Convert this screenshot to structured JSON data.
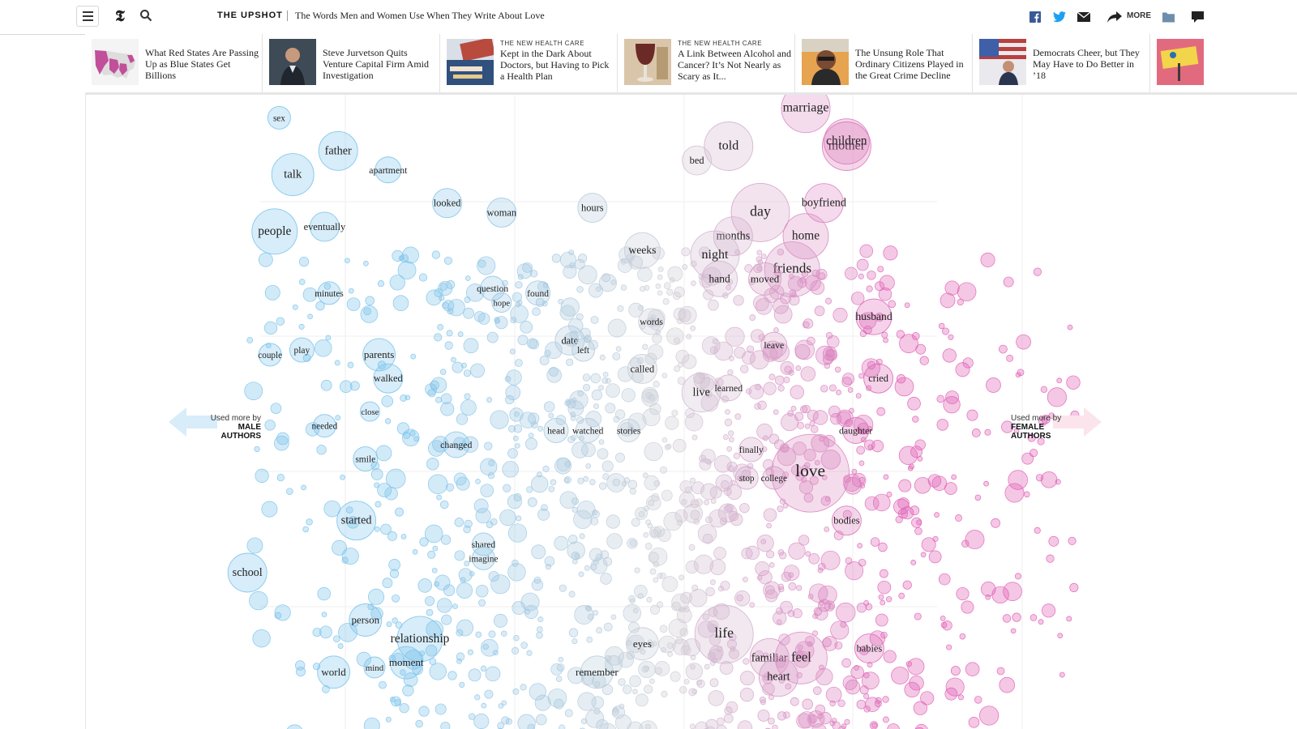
{
  "header": {
    "section": "THE UPSHOT",
    "headline": "The Words Men and Women Use When They Write About Love",
    "more_label": "MORE",
    "logo_letter": "𝕿"
  },
  "ribbon": [
    {
      "kicker": "",
      "title": "What Red States Are Passing Up as Blue States Get Billions",
      "thumb_color": "#c24f9a"
    },
    {
      "kicker": "",
      "title": "Steve Jurvetson Quits Venture Capital Firm Amid Investigation",
      "thumb_color": "#5a6a7a"
    },
    {
      "kicker": "THE NEW HEALTH CARE",
      "title": "Kept in the Dark About Doctors, but Having to Pick a Health Plan",
      "thumb_color": "#b84b3e"
    },
    {
      "kicker": "THE NEW HEALTH CARE",
      "title": "A Link Between Alcohol and Cancer? It’s Not Nearly as Scary as It...",
      "thumb_color": "#6b2a26"
    },
    {
      "kicker": "",
      "title": "The Unsung Role That Ordinary Citizens Played in the Great Crime Decline",
      "thumb_color": "#c9874a"
    },
    {
      "kicker": "",
      "title": "Democrats Cheer, but They May Have to Do Better in ’18",
      "thumb_color": "#3f5fa8"
    },
    {
      "kicker": "",
      "title": "",
      "thumb_color": "#e26a7e"
    }
  ],
  "chart_data": {
    "type": "scatter",
    "left_label": {
      "line1": "Used more by",
      "line2": "MALE",
      "line3": "AUTHORS"
    },
    "right_label": {
      "line1": "Used more by",
      "line2": "FEMALE",
      "line3": "AUTHORS"
    },
    "colors": {
      "male": "#7cc3ea",
      "female": "#e05fb4",
      "neutral": "#cfcfd6"
    },
    "labeled_words": [
      {
        "word": "sex",
        "x": -0.86,
        "y": 0.96,
        "size": 14,
        "side": "m"
      },
      {
        "word": "father",
        "x": -0.73,
        "y": 0.89,
        "size": 24,
        "side": "m"
      },
      {
        "word": "talk",
        "x": -0.83,
        "y": 0.84,
        "size": 26,
        "side": "m"
      },
      {
        "word": "apartment",
        "x": -0.62,
        "y": 0.85,
        "size": 16,
        "side": "m"
      },
      {
        "word": "looked",
        "x": -0.49,
        "y": 0.78,
        "size": 18,
        "side": "m"
      },
      {
        "word": "woman",
        "x": -0.37,
        "y": 0.76,
        "size": 18,
        "side": "m"
      },
      {
        "word": "eventually",
        "x": -0.76,
        "y": 0.73,
        "size": 18,
        "side": "m"
      },
      {
        "word": "people",
        "x": -0.87,
        "y": 0.72,
        "size": 28,
        "side": "m"
      },
      {
        "word": "minutes",
        "x": -0.75,
        "y": 0.59,
        "size": 14,
        "side": "m"
      },
      {
        "word": "question",
        "x": -0.39,
        "y": 0.6,
        "size": 15,
        "side": "m"
      },
      {
        "word": "hope",
        "x": -0.37,
        "y": 0.57,
        "size": 12,
        "side": "m"
      },
      {
        "word": "found",
        "x": -0.29,
        "y": 0.59,
        "size": 15,
        "side": "m"
      },
      {
        "word": "play",
        "x": -0.81,
        "y": 0.47,
        "size": 15,
        "side": "m"
      },
      {
        "word": "couple",
        "x": -0.88,
        "y": 0.46,
        "size": 14,
        "side": "m"
      },
      {
        "word": "parents",
        "x": -0.64,
        "y": 0.46,
        "size": 20,
        "side": "m"
      },
      {
        "word": "walked",
        "x": -0.62,
        "y": 0.41,
        "size": 18,
        "side": "m"
      },
      {
        "word": "close",
        "x": -0.66,
        "y": 0.34,
        "size": 12,
        "side": "m"
      },
      {
        "word": "needed",
        "x": -0.76,
        "y": 0.31,
        "size": 14,
        "side": "m"
      },
      {
        "word": "changed",
        "x": -0.47,
        "y": 0.27,
        "size": 16,
        "side": "m"
      },
      {
        "word": "smile",
        "x": -0.67,
        "y": 0.24,
        "size": 15,
        "side": "m"
      },
      {
        "word": "started",
        "x": -0.69,
        "y": 0.11,
        "size": 24,
        "side": "m"
      },
      {
        "word": "shared",
        "x": -0.41,
        "y": 0.06,
        "size": 14,
        "side": "m"
      },
      {
        "word": "imagine",
        "x": -0.41,
        "y": 0.03,
        "size": 14,
        "side": "m"
      },
      {
        "word": "school",
        "x": -0.93,
        "y": 0.0,
        "size": 24,
        "side": "m"
      },
      {
        "word": "person",
        "x": -0.67,
        "y": -0.1,
        "size": 20,
        "side": "m"
      },
      {
        "word": "relationship",
        "x": -0.55,
        "y": -0.14,
        "size": 28,
        "side": "m"
      },
      {
        "word": "moment",
        "x": -0.58,
        "y": -0.19,
        "size": 20,
        "side": "m"
      },
      {
        "word": "world",
        "x": -0.74,
        "y": -0.21,
        "size": 20,
        "side": "m"
      },
      {
        "word": "mind",
        "x": -0.65,
        "y": -0.2,
        "size": 13,
        "side": "m"
      },
      {
        "word": "hours",
        "x": -0.17,
        "y": 0.77,
        "size": 18,
        "side": "n"
      },
      {
        "word": "weeks",
        "x": -0.06,
        "y": 0.68,
        "size": 22,
        "side": "n"
      },
      {
        "word": "date",
        "x": -0.22,
        "y": 0.49,
        "size": 18,
        "side": "n"
      },
      {
        "word": "left",
        "x": -0.19,
        "y": 0.47,
        "size": 14,
        "side": "n"
      },
      {
        "word": "called",
        "x": -0.06,
        "y": 0.43,
        "size": 18,
        "side": "n"
      },
      {
        "word": "head",
        "x": -0.25,
        "y": 0.3,
        "size": 15,
        "side": "n"
      },
      {
        "word": "watched",
        "x": -0.18,
        "y": 0.3,
        "size": 15,
        "side": "n"
      },
      {
        "word": "stories",
        "x": -0.09,
        "y": 0.3,
        "size": 14,
        "side": "n"
      },
      {
        "word": "words",
        "x": -0.04,
        "y": 0.53,
        "size": 16,
        "side": "n"
      },
      {
        "word": "eyes",
        "x": -0.06,
        "y": -0.15,
        "size": 20,
        "side": "n"
      },
      {
        "word": "remember",
        "x": -0.16,
        "y": -0.21,
        "size": 20,
        "side": "n"
      },
      {
        "word": "marriage",
        "x": 0.3,
        "y": 0.98,
        "size": 30,
        "side": "f"
      },
      {
        "word": "told",
        "x": 0.13,
        "y": 0.9,
        "size": 30,
        "side": "f"
      },
      {
        "word": "bed",
        "x": 0.06,
        "y": 0.87,
        "size": 18,
        "side": "f"
      },
      {
        "word": "mother",
        "x": 0.39,
        "y": 0.9,
        "size": 30,
        "side": "f"
      },
      {
        "word": "children",
        "x": 0.39,
        "y": 0.91,
        "size": 28,
        "side": "f"
      },
      {
        "word": "boyfriend",
        "x": 0.34,
        "y": 0.78,
        "size": 24,
        "side": "f"
      },
      {
        "word": "day",
        "x": 0.2,
        "y": 0.76,
        "size": 36,
        "side": "f"
      },
      {
        "word": "home",
        "x": 0.3,
        "y": 0.71,
        "size": 28,
        "side": "f"
      },
      {
        "word": "months",
        "x": 0.14,
        "y": 0.71,
        "size": 24,
        "side": "f"
      },
      {
        "word": "night",
        "x": 0.1,
        "y": 0.67,
        "size": 30,
        "side": "f"
      },
      {
        "word": "friends",
        "x": 0.27,
        "y": 0.64,
        "size": 34,
        "side": "f"
      },
      {
        "word": "moved",
        "x": 0.21,
        "y": 0.62,
        "size": 20,
        "side": "f"
      },
      {
        "word": "hand",
        "x": 0.11,
        "y": 0.62,
        "size": 22,
        "side": "f"
      },
      {
        "word": "husband",
        "x": 0.45,
        "y": 0.54,
        "size": 22,
        "side": "f"
      },
      {
        "word": "leave",
        "x": 0.23,
        "y": 0.48,
        "size": 16,
        "side": "f"
      },
      {
        "word": "live",
        "x": 0.07,
        "y": 0.38,
        "size": 24,
        "side": "f"
      },
      {
        "word": "learned",
        "x": 0.13,
        "y": 0.39,
        "size": 16,
        "side": "f"
      },
      {
        "word": "cried",
        "x": 0.46,
        "y": 0.41,
        "size": 18,
        "side": "f"
      },
      {
        "word": "daughter",
        "x": 0.41,
        "y": 0.3,
        "size": 16,
        "side": "f"
      },
      {
        "word": "love",
        "x": 0.31,
        "y": 0.21,
        "size": 48,
        "side": "f"
      },
      {
        "word": "bodies",
        "x": 0.39,
        "y": 0.11,
        "size": 18,
        "side": "f"
      },
      {
        "word": "life",
        "x": 0.12,
        "y": -0.13,
        "size": 36,
        "side": "f"
      },
      {
        "word": "familiar",
        "x": 0.22,
        "y": -0.18,
        "size": 24,
        "side": "f"
      },
      {
        "word": "feel",
        "x": 0.29,
        "y": -0.18,
        "size": 32,
        "side": "f"
      },
      {
        "word": "heart",
        "x": 0.24,
        "y": -0.22,
        "size": 24,
        "side": "f"
      },
      {
        "word": "babies",
        "x": 0.44,
        "y": -0.16,
        "size": 18,
        "side": "f"
      },
      {
        "word": "stop",
        "x": 0.17,
        "y": 0.2,
        "size": 14,
        "side": "f"
      },
      {
        "word": "finally",
        "x": 0.18,
        "y": 0.26,
        "size": 15,
        "side": "f"
      },
      {
        "word": "college",
        "x": 0.23,
        "y": 0.2,
        "size": 14,
        "side": "f"
      }
    ]
  }
}
